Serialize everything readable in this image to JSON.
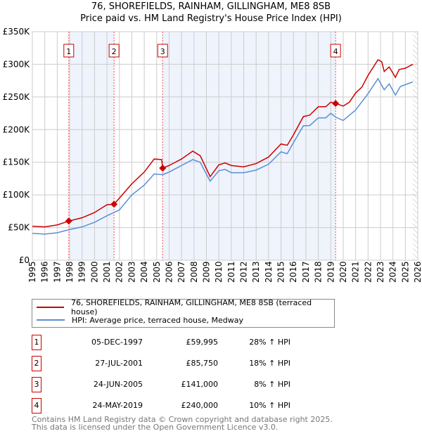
{
  "chart_data": {
    "type": "line",
    "title": "76, SHOREFIELDS, RAINHAM, GILLINGHAM, ME8 8SB",
    "subtitle": "Price paid vs. HM Land Registry's House Price Index (HPI)",
    "xlim": [
      1995,
      2026
    ],
    "ylim": [
      0,
      350000
    ],
    "yticks": [
      {
        "v": 0,
        "label": "£0"
      },
      {
        "v": 50000,
        "label": "£50K"
      },
      {
        "v": 100000,
        "label": "£100K"
      },
      {
        "v": 150000,
        "label": "£150K"
      },
      {
        "v": 200000,
        "label": "£200K"
      },
      {
        "v": 250000,
        "label": "£250K"
      },
      {
        "v": 300000,
        "label": "£300K"
      },
      {
        "v": 350000,
        "label": "£350K"
      }
    ],
    "xticks": [
      "1995",
      "1996",
      "1997",
      "1998",
      "1999",
      "2000",
      "2001",
      "2002",
      "2003",
      "2004",
      "2005",
      "2006",
      "2007",
      "2008",
      "2009",
      "2010",
      "2011",
      "2012",
      "2013",
      "2014",
      "2015",
      "2016",
      "2017",
      "2018",
      "2019",
      "2020",
      "2021",
      "2022",
      "2023",
      "2024",
      "2025",
      "2026"
    ],
    "grid": true,
    "forecast_from": 2025.6,
    "shaded_periods": [
      [
        1997.93,
        2001.57
      ],
      [
        2005.48,
        2019.39
      ]
    ],
    "series": [
      {
        "name": "76, SHOREFIELDS, RAINHAM, GILLINGHAM, ME8 8SB (terraced house)",
        "color": "#cc0000",
        "x": [
          1995,
          1996,
          1997,
          1997.93,
          1999,
          2000,
          2001,
          2001.57,
          2002,
          2003,
          2004,
          2004.8,
          2005.4,
          2005.48,
          2006,
          2007,
          2007.9,
          2008.5,
          2009.3,
          2010,
          2010.5,
          2011,
          2012,
          2013,
          2014,
          2015,
          2015.5,
          2016,
          2016.8,
          2017.3,
          2018,
          2018.6,
          2019,
          2019.39,
          2020,
          2020.5,
          2021,
          2021.5,
          2022,
          2022.8,
          2023.1,
          2023.3,
          2023.7,
          2024.2,
          2024.5,
          2025,
          2025.6
        ],
        "y": [
          52000,
          51000,
          54000,
          59995,
          65000,
          73000,
          85000,
          85750,
          95000,
          117000,
          135000,
          155000,
          154000,
          141000,
          145000,
          155000,
          167000,
          160000,
          128000,
          146000,
          149000,
          145000,
          143000,
          148000,
          158000,
          178000,
          176000,
          192000,
          220000,
          222000,
          235000,
          235000,
          242000,
          240000,
          236000,
          242000,
          256000,
          265000,
          283000,
          307000,
          304000,
          289000,
          296000,
          280000,
          292000,
          294000,
          300000
        ]
      },
      {
        "name": "HPI: Average price, terraced house, Medway",
        "color": "#5b8fd4",
        "x": [
          1995,
          1996,
          1997,
          1998,
          1999,
          2000,
          2001,
          2002,
          2003,
          2004,
          2004.8,
          2005.5,
          2006,
          2007,
          2007.9,
          2008.5,
          2009.3,
          2010,
          2010.5,
          2011,
          2012,
          2013,
          2014,
          2015,
          2015.5,
          2016,
          2016.8,
          2017.3,
          2018,
          2018.6,
          2019,
          2019.4,
          2020,
          2021,
          2022,
          2022.8,
          2023.3,
          2023.7,
          2024.2,
          2024.6,
          2025.6
        ],
        "y": [
          41000,
          40000,
          42000,
          47000,
          51000,
          58000,
          68000,
          77000,
          100000,
          115000,
          132000,
          131000,
          135000,
          145000,
          154000,
          150000,
          121000,
          137000,
          139000,
          134000,
          134000,
          138000,
          147000,
          166000,
          163000,
          180000,
          206000,
          206000,
          218000,
          218000,
          225000,
          219000,
          214000,
          230000,
          255000,
          278000,
          261000,
          270000,
          253000,
          266000,
          273000
        ]
      }
    ],
    "sales": [
      {
        "n": "1",
        "x": 1997.93,
        "y": 59995,
        "date": "05-DEC-1997",
        "price": "£59,995",
        "hpi": "28% ↑ HPI"
      },
      {
        "n": "2",
        "x": 2001.57,
        "y": 85750,
        "date": "27-JUL-2001",
        "price": "£85,750",
        "hpi": "18% ↑ HPI"
      },
      {
        "n": "3",
        "x": 2005.48,
        "y": 141000,
        "date": "24-JUN-2005",
        "price": "£141,000",
        "hpi": "8% ↑ HPI"
      },
      {
        "n": "4",
        "x": 2019.39,
        "y": 240000,
        "date": "24-MAY-2019",
        "price": "£240,000",
        "hpi": "10% ↑ HPI"
      }
    ]
  },
  "footer": {
    "line1": "Contains HM Land Registry data © Crown copyright and database right 2025.",
    "line2": "This data is licensed under the Open Government Licence v3.0."
  }
}
